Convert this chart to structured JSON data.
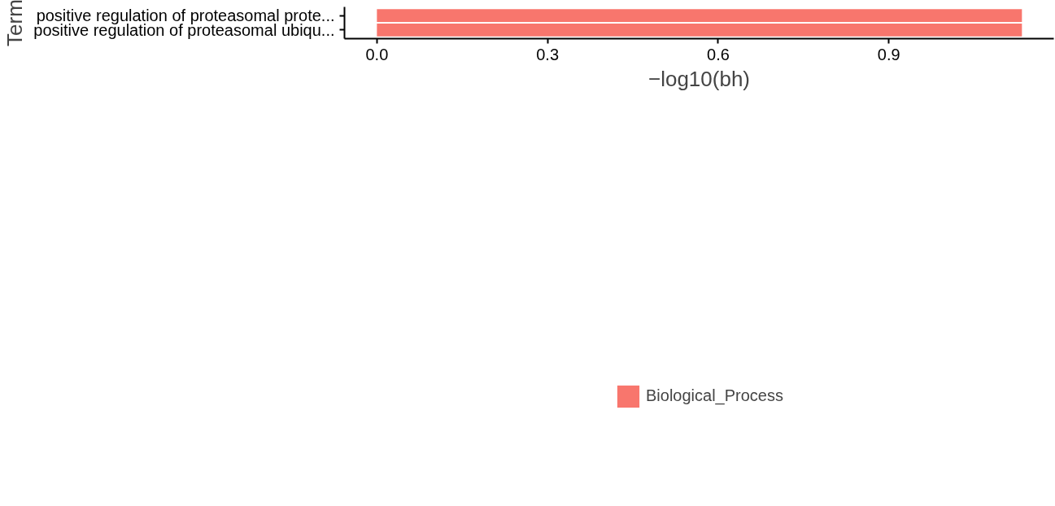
{
  "chart_data": {
    "type": "bar",
    "orientation": "horizontal",
    "xlabel": "−log10(bh)",
    "ylabel": "Term",
    "categories": [
      "positive regulation of proteasomal prote...",
      "positive regulation of proteasomal ubiqu..."
    ],
    "series": [
      {
        "name": "Biological_Process",
        "color": "#f8766d",
        "values": [
          1.134,
          1.134
        ]
      }
    ],
    "xlim": [
      -0.057,
      1.19
    ],
    "xticks": [
      {
        "value": 0,
        "label": "0.0"
      },
      {
        "value": 0.3,
        "label": "0.3"
      },
      {
        "value": 0.6,
        "label": "0.6"
      },
      {
        "value": 0.9,
        "label": "0.9"
      }
    ],
    "grid": false,
    "legend": "bottom"
  }
}
